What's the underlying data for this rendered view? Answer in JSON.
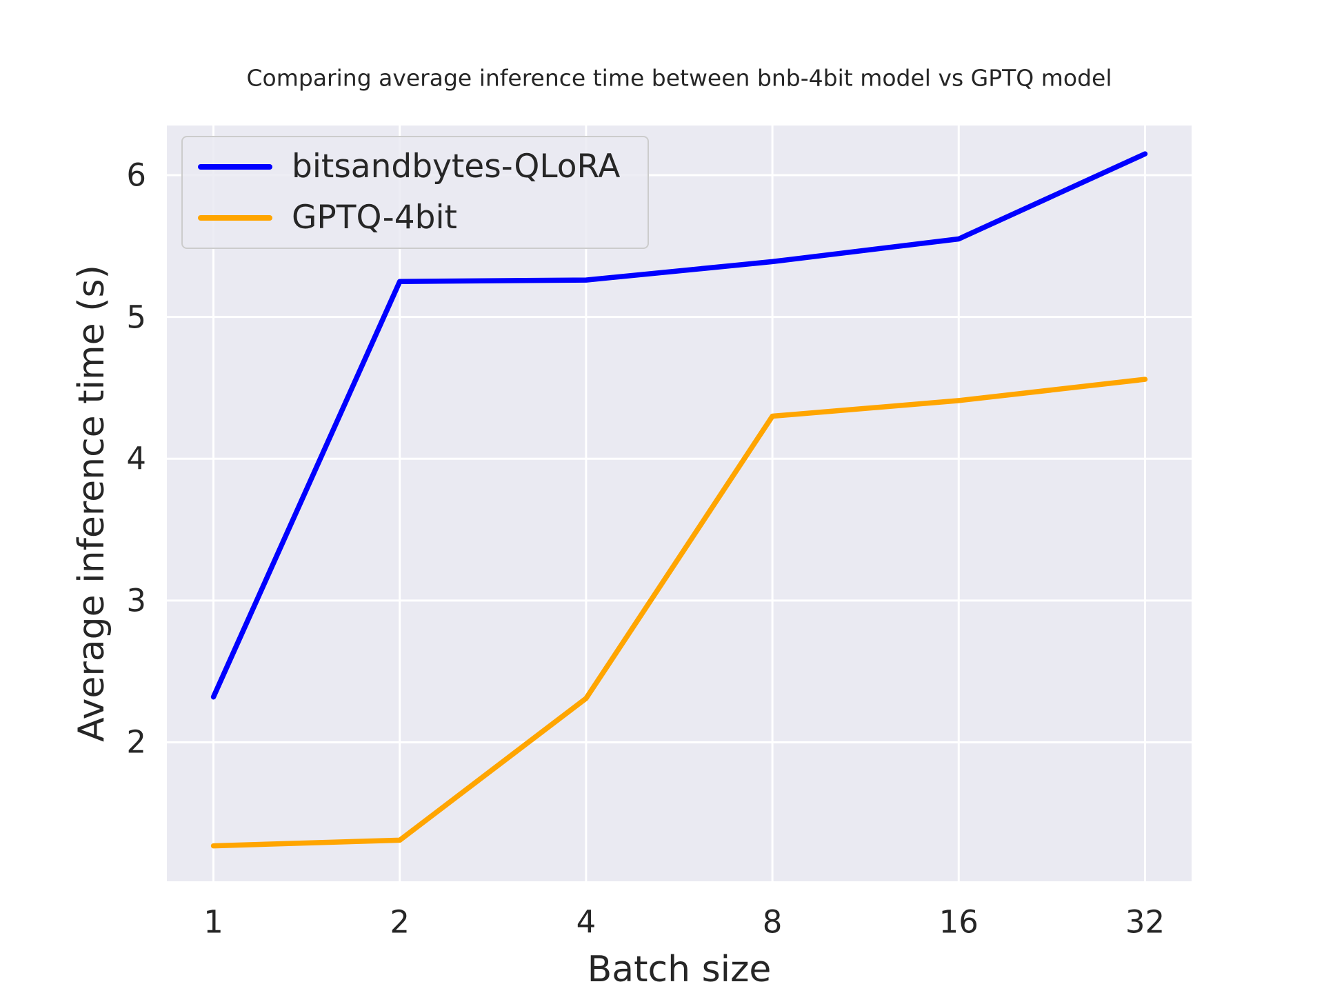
{
  "chart_data": {
    "type": "line",
    "title": "Comparing average inference time between bnb-4bit model vs GPTQ model",
    "xlabel": "Batch size",
    "ylabel": "Average inference time (s)",
    "categories": [
      "1",
      "2",
      "4",
      "8",
      "16",
      "32"
    ],
    "x_scale": "log2",
    "series": [
      {
        "name": "bitsandbytes-QLoRA",
        "color": "#0000ff",
        "values": [
          2.32,
          5.25,
          5.26,
          5.39,
          5.55,
          6.15
        ]
      },
      {
        "name": "GPTQ-4bit",
        "color": "#ffa500",
        "values": [
          1.27,
          1.31,
          2.31,
          4.3,
          4.41,
          4.56
        ]
      }
    ],
    "yticks": [
      2,
      3,
      4,
      5,
      6
    ],
    "ylim": [
      1.02,
      6.35
    ],
    "grid": "on",
    "legend_position": "upper left",
    "plot_bg_color": "#eaeaf2",
    "grid_color": "#ffffff",
    "text_color": "#262626"
  }
}
